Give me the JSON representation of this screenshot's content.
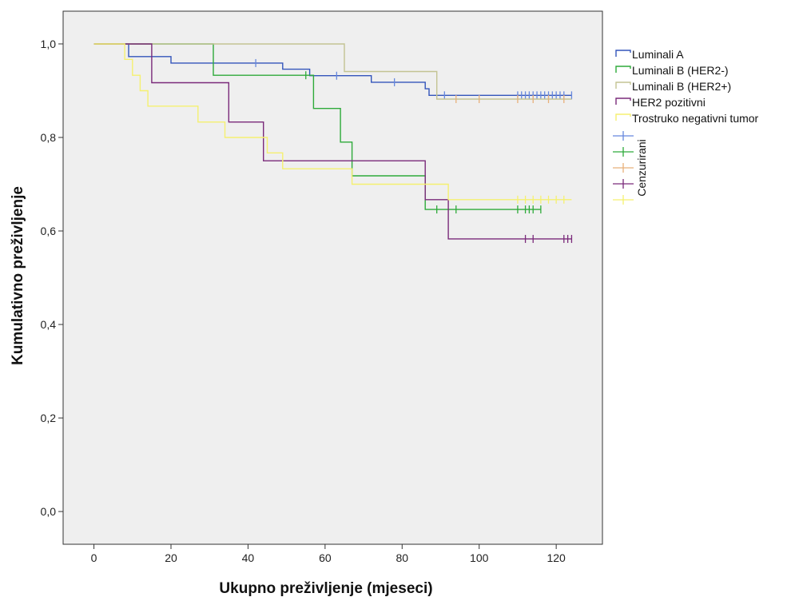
{
  "chart_data": {
    "type": "line",
    "title": "",
    "xlabel": "Ukupno preživljenje (mjeseci)",
    "ylabel": "Kumulativno preživljenje",
    "xlim": [
      -8,
      132
    ],
    "ylim": [
      -0.07,
      1.07
    ],
    "x_ticks": [
      0,
      20,
      40,
      60,
      80,
      100,
      120
    ],
    "x_tick_labels": [
      "0",
      "20",
      "40",
      "60",
      "80",
      "100",
      "120"
    ],
    "y_ticks": [
      0.0,
      0.2,
      0.4,
      0.6,
      0.8,
      1.0
    ],
    "y_tick_labels": [
      "0,0",
      "0,2",
      "0,4",
      "0,6",
      "0,8",
      "1,0"
    ],
    "grid": false,
    "legend_position": "right",
    "censored_label": "Cenzurirani",
    "series": [
      {
        "name": "Luminali A",
        "color": "#3355bb",
        "censor_color": "#6688dd",
        "steps": [
          [
            0,
            1.0
          ],
          [
            9,
            0.973
          ],
          [
            20,
            0.959
          ],
          [
            49,
            0.946
          ],
          [
            56,
            0.932
          ],
          [
            72,
            0.918
          ],
          [
            86,
            0.904
          ],
          [
            87,
            0.89
          ],
          [
            89,
            0.89
          ],
          [
            124,
            0.89
          ]
        ],
        "censored": [
          42,
          63,
          78,
          91,
          110,
          111,
          112,
          113,
          114,
          115,
          116,
          117,
          118,
          119,
          120,
          121,
          122,
          124
        ]
      },
      {
        "name": "Luminali B (HER2-)",
        "color": "#2eaa3a",
        "censor_color": "#2eaa3a",
        "steps": [
          [
            0,
            1.0
          ],
          [
            31,
            0.933
          ],
          [
            57,
            0.862
          ],
          [
            64,
            0.79
          ],
          [
            67,
            0.718
          ],
          [
            86,
            0.646
          ],
          [
            116,
            0.646
          ]
        ],
        "censored": [
          55,
          89,
          94,
          110,
          112,
          113,
          114,
          116
        ]
      },
      {
        "name": "Luminali B (HER2+)",
        "color": "#c4c493",
        "censor_color": "#e8b07a",
        "steps": [
          [
            0,
            1.0
          ],
          [
            65,
            0.941
          ],
          [
            89,
            0.882
          ],
          [
            124,
            0.882
          ]
        ],
        "censored": [
          94,
          100,
          110,
          114,
          118,
          122
        ]
      },
      {
        "name": "HER2 pozitivni",
        "color": "#7a2a7a",
        "censor_color": "#7a2a7a",
        "steps": [
          [
            0,
            1.0
          ],
          [
            9,
            1.0
          ],
          [
            15,
            0.917
          ],
          [
            35,
            0.833
          ],
          [
            44,
            0.75
          ],
          [
            86,
            0.667
          ],
          [
            92,
            0.583
          ],
          [
            124,
            0.583
          ]
        ],
        "censored": [
          112,
          114,
          122,
          123,
          124
        ]
      },
      {
        "name": "Trostruko negativni tumor",
        "color": "#f5f070",
        "censor_color": "#f5f070",
        "steps": [
          [
            0,
            1.0
          ],
          [
            8,
            0.967
          ],
          [
            10,
            0.933
          ],
          [
            12,
            0.9
          ],
          [
            14,
            0.867
          ],
          [
            27,
            0.833
          ],
          [
            34,
            0.8
          ],
          [
            45,
            0.767
          ],
          [
            49,
            0.733
          ],
          [
            67,
            0.7
          ],
          [
            92,
            0.667
          ],
          [
            124,
            0.667
          ]
        ],
        "censored": [
          110,
          112,
          114,
          116,
          118,
          120,
          122
        ]
      }
    ]
  }
}
